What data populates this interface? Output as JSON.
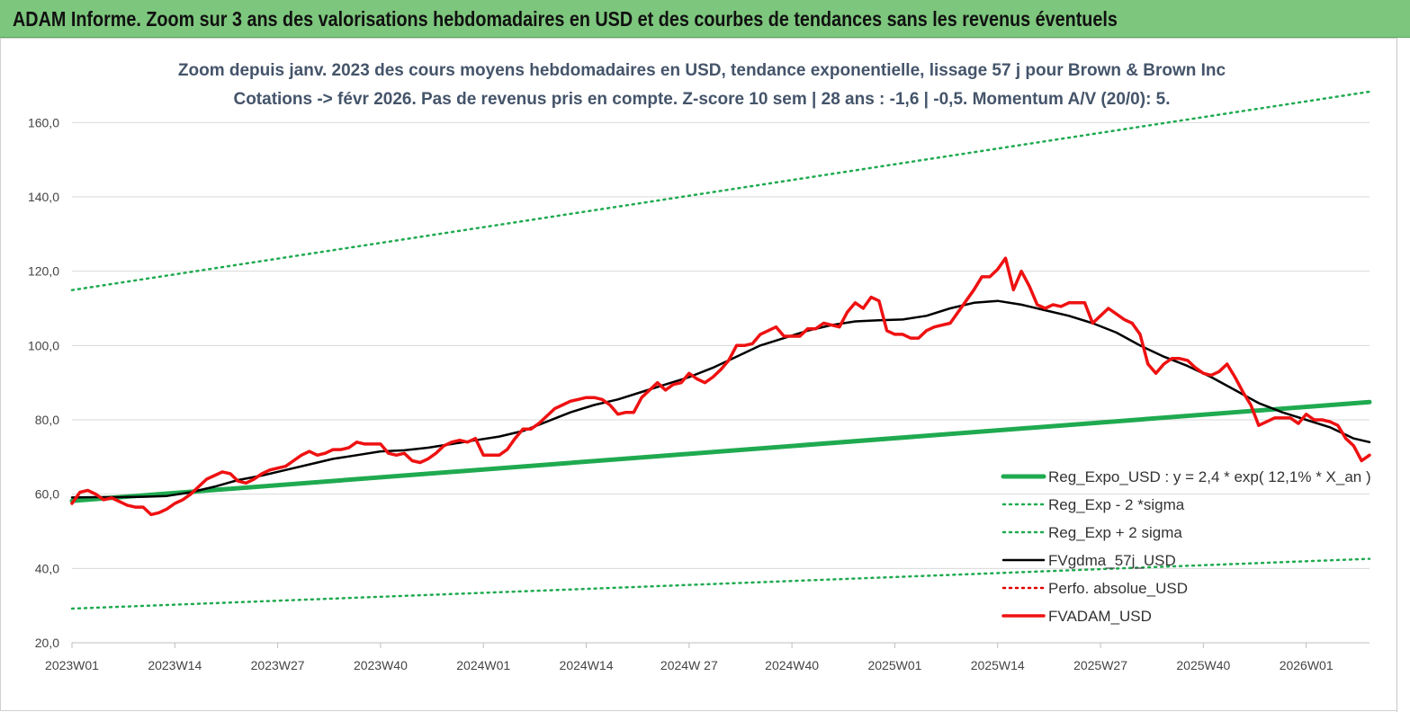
{
  "header": {
    "title": "ADAM Informe. Zoom sur 3 ans des valorisations hebdomadaires en USD et des courbes de tendances sans les revenus éventuels"
  },
  "chart_data": {
    "type": "line",
    "title_line1": "Zoom depuis janv. 2023 des cours moyens hebdomadaires en USD, tendance exponentielle, lissage 57 j pour Brown & Brown Inc",
    "title_line2": "Cotations -> févr 2026.  Pas de revenus pris en compte. Z-score 10 sem | 28 ans : -1,6 | -0,5. Momentum A/V (20/0): 5.",
    "x_range": [
      0,
      164
    ],
    "x_ticks": [
      {
        "x": 0,
        "label": "2023W01"
      },
      {
        "x": 13,
        "label": "2023W14"
      },
      {
        "x": 26,
        "label": "2023W27"
      },
      {
        "x": 39,
        "label": "2023W40"
      },
      {
        "x": 52,
        "label": "2024W01"
      },
      {
        "x": 65,
        "label": "2024W14"
      },
      {
        "x": 78,
        "label": "2024W 27"
      },
      {
        "x": 91,
        "label": "2024W40"
      },
      {
        "x": 104,
        "label": "2025W01"
      },
      {
        "x": 117,
        "label": "2025W14"
      },
      {
        "x": 130,
        "label": "2025W27"
      },
      {
        "x": 143,
        "label": "2025W40"
      },
      {
        "x": 156,
        "label": "2026W01"
      }
    ],
    "ylim": [
      20,
      170
    ],
    "y_ticks": [
      {
        "v": 20,
        "label": "20,0"
      },
      {
        "v": 40,
        "label": "40,0"
      },
      {
        "v": 60,
        "label": "60,0"
      },
      {
        "v": 80,
        "label": "80,0"
      },
      {
        "v": 100,
        "label": "100,0"
      },
      {
        "v": 120,
        "label": "120,0"
      },
      {
        "v": 140,
        "label": "140,0"
      },
      {
        "v": 160,
        "label": "160,0"
      }
    ],
    "grid": true,
    "legend_position": "bottom-right",
    "series": [
      {
        "name": "Reg_Expo_USD : y = 2,4 * exp( 12,1% *  X_an )",
        "style": "solid-thick",
        "color": "#1faa50",
        "points": [
          [
            0,
            58.2
          ],
          [
            164,
            84.8
          ]
        ]
      },
      {
        "name": "Reg_Exp - 2 *sigma",
        "style": "dotted",
        "color": "#1faa50",
        "points": [
          [
            0,
            29.2
          ],
          [
            164,
            42.6
          ]
        ]
      },
      {
        "name": "Reg_Exp + 2 sigma",
        "style": "dotted",
        "color": "#1faa50",
        "points": [
          [
            0,
            114.9
          ],
          [
            164,
            168.3
          ]
        ]
      },
      {
        "name": "FVgdma_57j_USD",
        "style": "solid",
        "color": "#000000",
        "points": [
          [
            0,
            59.1
          ],
          [
            3,
            59.2
          ],
          [
            6,
            59.2
          ],
          [
            9,
            59.3
          ],
          [
            12,
            59.5
          ],
          [
            15,
            60.5
          ],
          [
            18,
            62
          ],
          [
            21,
            63.8
          ],
          [
            24,
            65
          ],
          [
            27,
            66.5
          ],
          [
            30,
            68
          ],
          [
            33,
            69.5
          ],
          [
            36,
            70.5
          ],
          [
            39,
            71.5
          ],
          [
            42,
            71.8
          ],
          [
            45,
            72.5
          ],
          [
            48,
            73.5
          ],
          [
            51,
            74.5
          ],
          [
            54,
            75.5
          ],
          [
            57,
            77
          ],
          [
            60,
            79.5
          ],
          [
            63,
            82
          ],
          [
            66,
            84
          ],
          [
            69,
            85.5
          ],
          [
            72,
            87.5
          ],
          [
            75,
            89.5
          ],
          [
            78,
            91.5
          ],
          [
            81,
            94
          ],
          [
            84,
            97
          ],
          [
            87,
            100
          ],
          [
            90,
            102
          ],
          [
            93,
            104
          ],
          [
            96,
            105.5
          ],
          [
            99,
            106.5
          ],
          [
            102,
            106.8
          ],
          [
            105,
            107
          ],
          [
            108,
            108
          ],
          [
            111,
            110
          ],
          [
            114,
            111.5
          ],
          [
            117,
            112
          ],
          [
            120,
            111
          ],
          [
            123,
            109.5
          ],
          [
            126,
            108
          ],
          [
            129,
            106
          ],
          [
            132,
            103.5
          ],
          [
            135,
            100
          ],
          [
            138,
            97
          ],
          [
            141,
            94.5
          ],
          [
            144,
            91.5
          ],
          [
            147,
            88
          ],
          [
            150,
            84.5
          ],
          [
            153,
            82
          ],
          [
            156,
            80
          ],
          [
            159,
            78
          ],
          [
            162,
            75
          ],
          [
            164,
            74
          ]
        ]
      },
      {
        "name": "Perfo. absolue_USD",
        "style": "dotted",
        "color": "#e00000",
        "points": []
      },
      {
        "name": "FVADAM_USD",
        "style": "solid-thick",
        "color": "#ee1111",
        "points": [
          [
            0,
            57.5
          ],
          [
            1,
            60.5
          ],
          [
            2,
            61
          ],
          [
            3,
            60
          ],
          [
            4,
            58.5
          ],
          [
            5,
            59
          ],
          [
            6,
            58
          ],
          [
            7,
            57
          ],
          [
            8,
            56.5
          ],
          [
            9,
            56.5
          ],
          [
            10,
            54.5
          ],
          [
            11,
            55
          ],
          [
            12,
            56
          ],
          [
            13,
            57.5
          ],
          [
            14,
            58.5
          ],
          [
            15,
            60
          ],
          [
            16,
            62
          ],
          [
            17,
            64
          ],
          [
            18,
            65
          ],
          [
            19,
            66
          ],
          [
            20,
            65.5
          ],
          [
            21,
            63.5
          ],
          [
            22,
            63
          ],
          [
            23,
            64
          ],
          [
            24,
            65.5
          ],
          [
            25,
            66.5
          ],
          [
            26,
            67
          ],
          [
            27,
            67.5
          ],
          [
            28,
            69
          ],
          [
            29,
            70.5
          ],
          [
            30,
            71.5
          ],
          [
            31,
            70.5
          ],
          [
            32,
            71
          ],
          [
            33,
            72
          ],
          [
            34,
            72
          ],
          [
            35,
            72.5
          ],
          [
            36,
            74
          ],
          [
            37,
            73.5
          ],
          [
            38,
            73.5
          ],
          [
            39,
            73.5
          ],
          [
            40,
            71
          ],
          [
            41,
            70.5
          ],
          [
            42,
            71
          ],
          [
            43,
            69
          ],
          [
            44,
            68.5
          ],
          [
            45,
            69.5
          ],
          [
            46,
            71
          ],
          [
            47,
            73
          ],
          [
            48,
            74
          ],
          [
            49,
            74.5
          ],
          [
            50,
            74
          ],
          [
            51,
            75
          ],
          [
            52,
            70.5
          ],
          [
            53,
            70.5
          ],
          [
            54,
            70.5
          ],
          [
            55,
            72
          ],
          [
            56,
            75
          ],
          [
            57,
            77.5
          ],
          [
            58,
            77.5
          ],
          [
            59,
            79
          ],
          [
            60,
            81
          ],
          [
            61,
            83
          ],
          [
            62,
            84
          ],
          [
            63,
            85
          ],
          [
            64,
            85.5
          ],
          [
            65,
            86
          ],
          [
            66,
            86
          ],
          [
            67,
            85.5
          ],
          [
            68,
            84
          ],
          [
            69,
            81.5
          ],
          [
            70,
            82
          ],
          [
            71,
            82
          ],
          [
            72,
            86
          ],
          [
            73,
            88
          ],
          [
            74,
            90
          ],
          [
            75,
            88
          ],
          [
            76,
            89.5
          ],
          [
            77,
            90
          ],
          [
            78,
            92.5
          ],
          [
            79,
            91
          ],
          [
            80,
            90
          ],
          [
            81,
            91.5
          ],
          [
            82,
            93.5
          ],
          [
            83,
            96
          ],
          [
            84,
            100
          ],
          [
            85,
            100
          ],
          [
            86,
            100.5
          ],
          [
            87,
            103
          ],
          [
            88,
            104
          ],
          [
            89,
            105
          ],
          [
            90,
            102.5
          ],
          [
            91,
            102.5
          ],
          [
            92,
            102.5
          ],
          [
            93,
            104.5
          ],
          [
            94,
            104.5
          ],
          [
            95,
            106
          ],
          [
            96,
            105.5
          ],
          [
            97,
            105
          ],
          [
            98,
            109
          ],
          [
            99,
            111.5
          ],
          [
            100,
            110
          ],
          [
            101,
            113
          ],
          [
            102,
            112
          ],
          [
            103,
            104
          ],
          [
            104,
            103
          ],
          [
            105,
            103
          ],
          [
            106,
            102
          ],
          [
            107,
            102
          ],
          [
            108,
            104
          ],
          [
            109,
            105
          ],
          [
            110,
            105.5
          ],
          [
            111,
            106
          ],
          [
            112,
            109
          ],
          [
            113,
            112
          ],
          [
            114,
            115
          ],
          [
            115,
            118.5
          ],
          [
            116,
            118.5
          ],
          [
            117,
            120.5
          ],
          [
            118,
            123.5
          ],
          [
            119,
            115
          ],
          [
            120,
            120
          ],
          [
            121,
            116
          ],
          [
            122,
            111
          ],
          [
            123,
            110
          ],
          [
            124,
            111
          ],
          [
            125,
            110.5
          ],
          [
            126,
            111.5
          ],
          [
            127,
            111.5
          ],
          [
            128,
            111.5
          ],
          [
            129,
            106
          ],
          [
            130,
            108
          ],
          [
            131,
            110
          ],
          [
            132,
            108.5
          ],
          [
            133,
            107
          ],
          [
            134,
            106
          ],
          [
            135,
            103
          ],
          [
            136,
            95
          ],
          [
            137,
            92.5
          ],
          [
            138,
            95
          ],
          [
            139,
            96.5
          ],
          [
            140,
            96.5
          ],
          [
            141,
            96
          ],
          [
            142,
            94
          ],
          [
            143,
            92.5
          ],
          [
            144,
            92
          ],
          [
            145,
            93
          ],
          [
            146,
            95
          ],
          [
            147,
            91.5
          ],
          [
            148,
            87.5
          ],
          [
            149,
            84
          ],
          [
            150,
            78.5
          ],
          [
            151,
            79.5
          ],
          [
            152,
            80.5
          ],
          [
            153,
            80.5
          ],
          [
            154,
            80.5
          ],
          [
            155,
            79
          ],
          [
            156,
            81.5
          ],
          [
            157,
            80
          ],
          [
            158,
            80
          ],
          [
            159,
            79.5
          ],
          [
            160,
            78.5
          ],
          [
            161,
            75
          ],
          [
            162,
            73
          ],
          [
            163,
            69
          ],
          [
            164,
            70.5
          ]
        ]
      }
    ]
  }
}
